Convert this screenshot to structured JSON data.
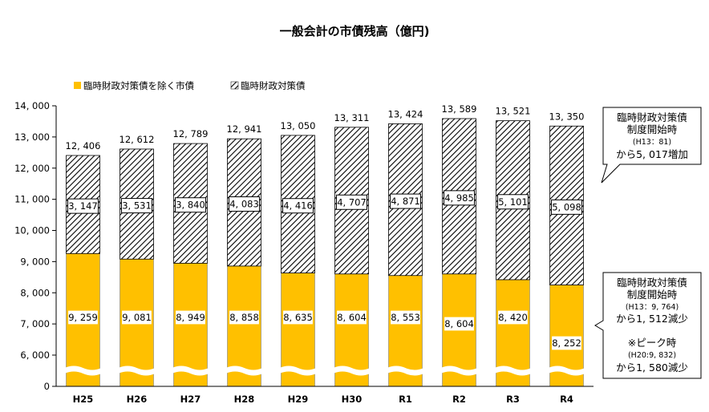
{
  "chart_data": {
    "type": "bar",
    "stacked": true,
    "title": "一般会計の市債残高（億円)",
    "categories": [
      "H25",
      "H26",
      "H27",
      "H28",
      "H29",
      "H30",
      "R1",
      "R2",
      "R3",
      "R4"
    ],
    "series": [
      {
        "name": "臨時財政対策債を除く市債",
        "color": "#FFC000",
        "values": [
          9259,
          9081,
          8949,
          8858,
          8635,
          8604,
          8553,
          8604,
          8420,
          8252
        ],
        "labels": [
          "9, 259",
          "9, 081",
          "8, 949",
          "8, 858",
          "8, 635",
          "8, 604",
          "8, 553",
          "8, 604",
          "8, 420",
          "8, 252"
        ]
      },
      {
        "name": "臨時財政対策債",
        "pattern": "diagonal-hatch",
        "values": [
          3147,
          3531,
          3840,
          4083,
          4416,
          4707,
          4871,
          4985,
          5101,
          5098
        ],
        "labels": [
          "3, 147",
          "3, 531",
          "3, 840",
          "4, 083",
          "4, 416",
          "4, 707",
          "4, 871",
          "4, 985",
          "5, 101",
          "5, 098"
        ]
      }
    ],
    "totals": [
      12406,
      12612,
      12789,
      12941,
      13050,
      13311,
      13424,
      13589,
      13521,
      13350
    ],
    "total_labels": [
      "12, 406",
      "12, 612",
      "12, 789",
      "12, 941",
      "13, 050",
      "13, 311",
      "13, 424",
      "13, 589",
      "13, 521",
      "13, 350"
    ],
    "yticks": [
      0,
      6000,
      7000,
      8000,
      9000,
      10000,
      11000,
      12000,
      13000,
      14000
    ],
    "ytick_labels": [
      "0",
      "6, 000",
      "7, 000",
      "8, 000",
      "9, 000",
      "10, 000",
      "11, 000",
      "12, 000",
      "13, 000",
      "14, 000"
    ],
    "ylim": [
      0,
      14000
    ],
    "axis_break": true,
    "legend_position": "top-left",
    "xlabel": "",
    "ylabel": ""
  },
  "callouts": {
    "upper": {
      "line1": "臨時財政対策債",
      "line2": "制度開始時",
      "line3": "(H13：81)",
      "line4": "から5, 017増加"
    },
    "lower": {
      "line1": "臨時財政対策債",
      "line2": "制度開始時",
      "line3": "(H13：9, 764)",
      "line4": "から1, 512減少",
      "line5": "※ピーク時",
      "line6": "(H20:9, 832)",
      "line7": "から1, 580減少"
    }
  },
  "colors": {
    "base": "#FFC000",
    "hatch": "#000000",
    "label_border_gold": "#FFC000"
  }
}
